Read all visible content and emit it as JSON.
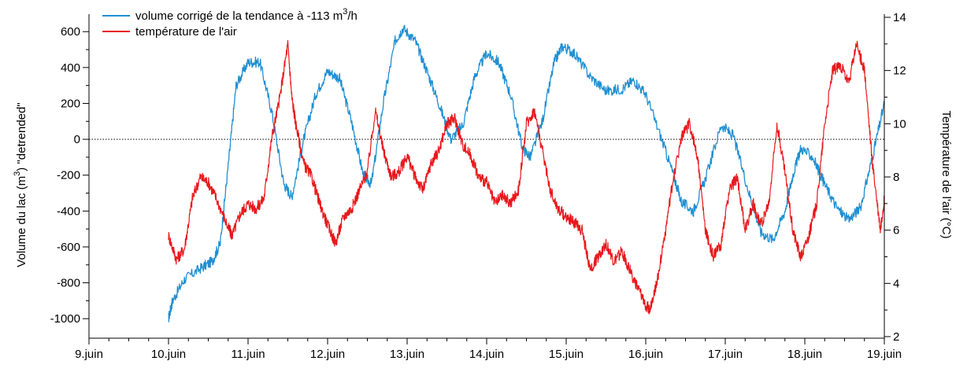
{
  "chart_data": {
    "type": "line",
    "title": "",
    "x_axis": {
      "range": [
        9,
        19
      ],
      "tick_values": [
        9,
        10,
        11,
        12,
        13,
        14,
        15,
        16,
        17,
        18,
        19
      ],
      "tick_labels": [
        "9.juin",
        "10.juin",
        "11.juin",
        "12.juin",
        "13.juin",
        "14.juin",
        "15.juin",
        "16.juin",
        "17.juin",
        "18.juin",
        "19.juin"
      ]
    },
    "y_left": {
      "label_pre": "Volume du lac (m",
      "label_sup": "3",
      "label_post": ") \"detrended\"",
      "range": [
        -1100,
        680
      ],
      "tick_values": [
        -1000,
        -800,
        -600,
        -400,
        -200,
        0,
        200,
        400,
        600
      ],
      "tick_labels": [
        "-1000",
        "-800",
        "-600",
        "-400",
        "-200",
        "0",
        "200",
        "400",
        "600"
      ]
    },
    "y_right": {
      "label": "Température de l'air (°C)",
      "range": [
        2,
        14
      ],
      "tick_values": [
        2,
        4,
        6,
        8,
        10,
        12,
        14
      ],
      "tick_labels": [
        "2",
        "4",
        "6",
        "8",
        "10",
        "12",
        "14"
      ]
    },
    "zero_line": {
      "value": 0,
      "style": "dotted"
    },
    "legend": {
      "placement": "top-left",
      "entries": [
        {
          "pre": "volume corrigé de la tendance à -113 m",
          "sup": "3",
          "post": "/h",
          "color": "#1f8fd2"
        },
        {
          "pre": "température de l'air",
          "sup": "",
          "post": "",
          "color": "#e8181c"
        }
      ]
    },
    "series": [
      {
        "axis": "left",
        "color": "#1f8fd2",
        "x": [
          10.0,
          10.05,
          10.2,
          10.4,
          10.55,
          10.65,
          10.75,
          10.85,
          11.0,
          11.15,
          11.3,
          11.45,
          11.55,
          11.7,
          11.85,
          12.0,
          12.15,
          12.3,
          12.45,
          12.55,
          12.7,
          12.85,
          12.95,
          13.1,
          13.25,
          13.4,
          13.55,
          13.7,
          13.85,
          14.0,
          14.15,
          14.3,
          14.45,
          14.55,
          14.7,
          14.85,
          14.95,
          15.1,
          15.3,
          15.5,
          15.7,
          15.85,
          16.0,
          16.2,
          16.35,
          16.45,
          16.6,
          16.75,
          16.95,
          17.1,
          17.3,
          17.45,
          17.6,
          17.75,
          17.85,
          17.95,
          18.1,
          18.25,
          18.4,
          18.55,
          18.7,
          18.85,
          19.0
        ],
        "y": [
          -1000,
          -900,
          -780,
          -720,
          -680,
          -580,
          -150,
          300,
          430,
          430,
          150,
          -250,
          -320,
          0,
          250,
          380,
          340,
          100,
          -200,
          -250,
          200,
          550,
          620,
          550,
          380,
          200,
          0,
          80,
          350,
          480,
          430,
          250,
          -50,
          -100,
          100,
          430,
          520,
          480,
          350,
          270,
          280,
          330,
          250,
          0,
          -200,
          -350,
          -400,
          -220,
          80,
          20,
          -300,
          -520,
          -560,
          -400,
          -200,
          -50,
          -100,
          -250,
          -380,
          -450,
          -380,
          -100,
          200
        ]
      },
      {
        "axis": "right",
        "color": "#e8181c",
        "x": [
          10.0,
          10.1,
          10.2,
          10.3,
          10.4,
          10.5,
          10.6,
          10.75,
          10.8,
          10.9,
          11.0,
          11.1,
          11.2,
          11.3,
          11.4,
          11.5,
          11.55,
          11.6,
          11.7,
          11.8,
          11.9,
          12.0,
          12.1,
          12.2,
          12.3,
          12.4,
          12.5,
          12.6,
          12.7,
          12.8,
          12.9,
          13.0,
          13.1,
          13.2,
          13.3,
          13.4,
          13.5,
          13.6,
          13.7,
          13.8,
          13.9,
          14.0,
          14.1,
          14.2,
          14.3,
          14.4,
          14.5,
          14.6,
          14.7,
          14.8,
          14.9,
          15.0,
          15.1,
          15.2,
          15.3,
          15.4,
          15.5,
          15.6,
          15.7,
          15.8,
          15.9,
          16.0,
          16.05,
          16.15,
          16.25,
          16.35,
          16.45,
          16.55,
          16.65,
          16.75,
          16.85,
          16.95,
          17.05,
          17.15,
          17.25,
          17.35,
          17.45,
          17.55,
          17.65,
          17.75,
          17.85,
          17.95,
          18.05,
          18.15,
          18.25,
          18.35,
          18.45,
          18.55,
          18.65,
          18.75,
          18.85,
          18.95,
          19.0
        ],
        "y": [
          5.8,
          4.9,
          5.3,
          7.2,
          8.0,
          7.8,
          7.2,
          6.1,
          5.8,
          6.6,
          7.0,
          6.8,
          7.2,
          9.5,
          11.0,
          13.0,
          11.0,
          10.0,
          8.5,
          8.0,
          7.0,
          6.2,
          5.5,
          6.5,
          6.8,
          7.5,
          8.2,
          10.5,
          9.0,
          8.0,
          8.2,
          8.8,
          8.0,
          7.5,
          8.5,
          9.0,
          10.0,
          10.2,
          9.2,
          8.8,
          8.0,
          7.8,
          7.0,
          7.3,
          7.0,
          7.5,
          10.0,
          10.5,
          9.0,
          7.5,
          6.8,
          6.5,
          6.3,
          6.0,
          4.5,
          5.0,
          5.5,
          4.8,
          5.2,
          4.5,
          3.8,
          3.2,
          3.0,
          4.2,
          6.0,
          8.0,
          9.5,
          10.0,
          8.8,
          6.0,
          5.0,
          5.5,
          7.5,
          8.0,
          6.0,
          7.0,
          6.2,
          7.0,
          10.0,
          8.2,
          6.0,
          5.0,
          5.8,
          7.0,
          10.0,
          12.0,
          12.2,
          11.5,
          13.0,
          12.0,
          8.5,
          6.0,
          7.2
        ]
      }
    ]
  }
}
